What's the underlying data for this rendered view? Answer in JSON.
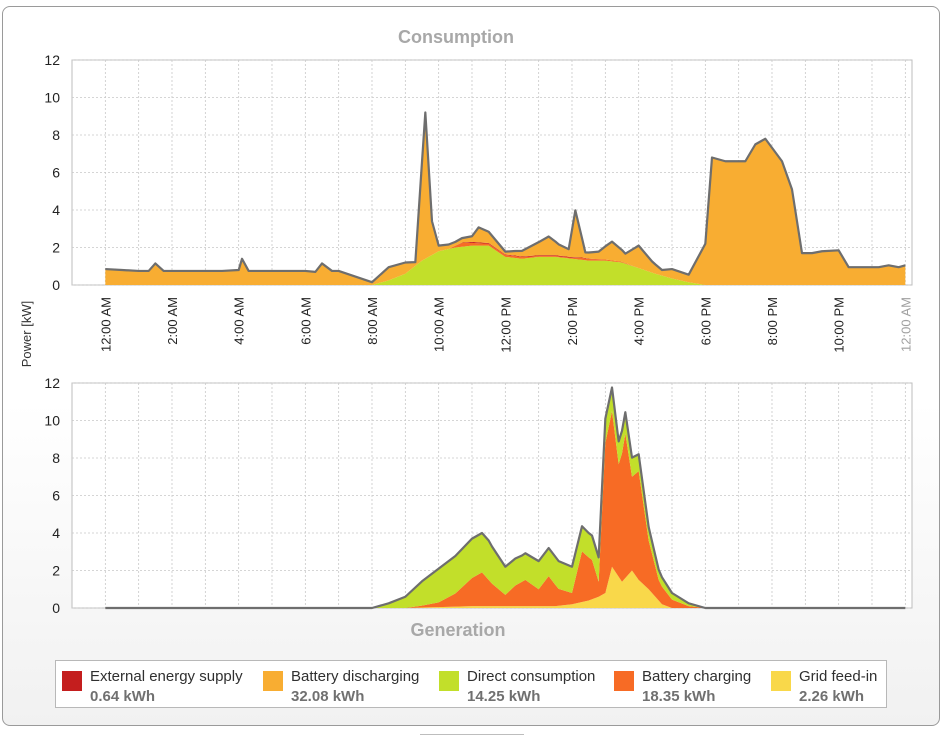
{
  "colors": {
    "external_energy_supply": "#c41e1e",
    "battery_discharging": "#f8ad32",
    "direct_consumption": "#c2df2a",
    "battery_charging": "#f76b25",
    "grid_feed_in": "#f9d84a",
    "outline": "#6e6e6e",
    "grid": "#c8c8c8"
  },
  "chart_data": [
    {
      "type": "area",
      "title": "Consumption",
      "ylabel": "Power [kW]",
      "xlabel": "",
      "ylim": [
        0,
        12
      ],
      "yticks": [
        "0",
        "2",
        "4",
        "6",
        "8",
        "10",
        "12"
      ],
      "xticks": [
        "12:00 AM",
        "2:00 AM",
        "4:00 AM",
        "6:00 AM",
        "8:00 AM",
        "10:00 AM",
        "12:00 PM",
        "2:00 PM",
        "4:00 PM",
        "6:00 PM",
        "8:00 PM",
        "10:00 PM",
        "12:00 AM"
      ],
      "grid": true,
      "stacked": true,
      "series": [
        {
          "name": "Direct consumption",
          "color_key": "direct_consumption",
          "points": [
            [
              0,
              0
            ],
            [
              8,
              0
            ],
            [
              8.5,
              0.25
            ],
            [
              9,
              0.6
            ],
            [
              9.5,
              1.3
            ],
            [
              10,
              1.8
            ],
            [
              10.5,
              2.0
            ],
            [
              11,
              2.1
            ],
            [
              11.5,
              2.1
            ],
            [
              12,
              1.5
            ],
            [
              12.5,
              1.4
            ],
            [
              13,
              1.5
            ],
            [
              13.5,
              1.5
            ],
            [
              14,
              1.4
            ],
            [
              14.5,
              1.3
            ],
            [
              15,
              1.3
            ],
            [
              15.5,
              1.2
            ],
            [
              16,
              0.9
            ],
            [
              16.5,
              0.6
            ],
            [
              17,
              0.35
            ],
            [
              17.5,
              0.15
            ],
            [
              18,
              0
            ],
            [
              24,
              0
            ]
          ]
        },
        {
          "name": "Battery charging",
          "color_key": "battery_charging",
          "points": [
            [
              0,
              0
            ],
            [
              10.3,
              0
            ],
            [
              10.7,
              0.2
            ],
            [
              11,
              0.15
            ],
            [
              11.5,
              0.1
            ],
            [
              12.3,
              0.1
            ],
            [
              13,
              0.05
            ],
            [
              14,
              0.05
            ],
            [
              14.3,
              0.1
            ],
            [
              14.6,
              0.08
            ],
            [
              15.5,
              0.04
            ],
            [
              16,
              0
            ],
            [
              24,
              0
            ]
          ]
        },
        {
          "name": "External energy supply",
          "color_key": "external_energy_supply",
          "points": [
            [
              0,
              0
            ],
            [
              10.5,
              0
            ],
            [
              11,
              0.05
            ],
            [
              12,
              0.03
            ],
            [
              14,
              0.04
            ],
            [
              15,
              0
            ],
            [
              24,
              0
            ]
          ]
        },
        {
          "name": "Battery discharging",
          "color_key": "battery_discharging",
          "points": [
            [
              0,
              0.85
            ],
            [
              0.5,
              0.8
            ],
            [
              1,
              0.75
            ],
            [
              1.3,
              0.75
            ],
            [
              1.5,
              1.15
            ],
            [
              1.75,
              0.75
            ],
            [
              2,
              0.75
            ],
            [
              3,
              0.75
            ],
            [
              3.5,
              0.75
            ],
            [
              4,
              0.8
            ],
            [
              4.1,
              1.4
            ],
            [
              4.3,
              0.75
            ],
            [
              5,
              0.75
            ],
            [
              6,
              0.75
            ],
            [
              6.3,
              0.7
            ],
            [
              6.5,
              1.15
            ],
            [
              6.8,
              0.75
            ],
            [
              7,
              0.75
            ],
            [
              8,
              0.15
            ],
            [
              8.5,
              0.7
            ],
            [
              9,
              0.6
            ],
            [
              9.3,
              0.2
            ],
            [
              9.6,
              7.8
            ],
            [
              9.8,
              1.8
            ],
            [
              10,
              0.3
            ],
            [
              10.5,
              0.2
            ],
            [
              11,
              0.3
            ],
            [
              11.2,
              0.8
            ],
            [
              11.5,
              0.6
            ],
            [
              12,
              0.15
            ],
            [
              12.5,
              0.3
            ],
            [
              13,
              0.7
            ],
            [
              13.3,
              1.0
            ],
            [
              13.6,
              0.6
            ],
            [
              13.9,
              0.4
            ],
            [
              14.1,
              2.5
            ],
            [
              14.4,
              0.3
            ],
            [
              14.8,
              0.4
            ],
            [
              15.2,
              1.0
            ],
            [
              15.6,
              0.5
            ],
            [
              16,
              1.2
            ],
            [
              16.4,
              0.6
            ],
            [
              16.7,
              0.3
            ],
            [
              17,
              0.5
            ],
            [
              17.5,
              0.4
            ],
            [
              18,
              2.2
            ],
            [
              18.2,
              6.8
            ],
            [
              18.6,
              6.6
            ],
            [
              19.2,
              6.6
            ],
            [
              19.5,
              7.5
            ],
            [
              19.8,
              7.8
            ],
            [
              20.3,
              6.6
            ],
            [
              20.6,
              5.1
            ],
            [
              20.9,
              1.7
            ],
            [
              21.2,
              1.7
            ],
            [
              21.5,
              1.8
            ],
            [
              22,
              1.85
            ],
            [
              22.3,
              0.95
            ],
            [
              22.7,
              0.95
            ],
            [
              23.2,
              0.95
            ],
            [
              23.5,
              1.05
            ],
            [
              23.8,
              0.95
            ],
            [
              24,
              1.05
            ]
          ]
        }
      ]
    },
    {
      "type": "area",
      "title": "Generation",
      "ylabel": "Power [kW]",
      "xlabel": "",
      "ylim": [
        0,
        12
      ],
      "yticks": [
        "0",
        "2",
        "4",
        "6",
        "8",
        "10",
        "12"
      ],
      "grid": true,
      "stacked": true,
      "series": [
        {
          "name": "Grid feed-in",
          "color_key": "grid_feed_in",
          "points": [
            [
              0,
              0
            ],
            [
              9,
              0
            ],
            [
              10,
              0.05
            ],
            [
              11,
              0.1
            ],
            [
              12,
              0.1
            ],
            [
              13.5,
              0.1
            ],
            [
              14,
              0.2
            ],
            [
              14.5,
              0.4
            ],
            [
              14.8,
              0.6
            ],
            [
              15,
              0.8
            ],
            [
              15.2,
              2.2
            ],
            [
              15.5,
              1.4
            ],
            [
              15.8,
              2.0
            ],
            [
              16,
              1.5
            ],
            [
              16.3,
              1.0
            ],
            [
              16.7,
              0.2
            ],
            [
              17,
              0
            ],
            [
              24,
              0
            ]
          ]
        },
        {
          "name": "Battery charging",
          "color_key": "battery_charging",
          "points": [
            [
              0,
              0
            ],
            [
              9,
              0
            ],
            [
              9.5,
              0.1
            ],
            [
              10,
              0.25
            ],
            [
              10.5,
              0.7
            ],
            [
              11,
              1.5
            ],
            [
              11.3,
              1.8
            ],
            [
              11.6,
              1.2
            ],
            [
              12,
              0.6
            ],
            [
              12.3,
              1.1
            ],
            [
              12.6,
              1.4
            ],
            [
              13,
              0.9
            ],
            [
              13.3,
              1.6
            ],
            [
              13.6,
              0.9
            ],
            [
              14,
              0.6
            ],
            [
              14.3,
              2.7
            ],
            [
              14.6,
              2.1
            ],
            [
              14.8,
              0.8
            ],
            [
              15,
              8.0
            ],
            [
              15.2,
              8.3
            ],
            [
              15.4,
              6.0
            ],
            [
              15.6,
              7.7
            ],
            [
              15.8,
              5.0
            ],
            [
              16,
              5.8
            ],
            [
              16.3,
              2.6
            ],
            [
              16.6,
              1.1
            ],
            [
              17,
              0.45
            ],
            [
              17.5,
              0.1
            ],
            [
              18,
              0
            ],
            [
              24,
              0
            ]
          ]
        },
        {
          "name": "Direct consumption",
          "color_key": "direct_consumption",
          "points": [
            [
              0,
              0
            ],
            [
              8,
              0
            ],
            [
              8.5,
              0.25
            ],
            [
              9,
              0.6
            ],
            [
              9.5,
              1.3
            ],
            [
              10,
              1.8
            ],
            [
              10.5,
              2.0
            ],
            [
              11,
              2.1
            ],
            [
              11.5,
              2.1
            ],
            [
              12,
              1.5
            ],
            [
              12.5,
              1.4
            ],
            [
              13,
              1.5
            ],
            [
              13.5,
              1.5
            ],
            [
              14,
              1.4
            ],
            [
              14.5,
              1.3
            ],
            [
              15,
              1.3
            ],
            [
              15.5,
              1.2
            ],
            [
              16,
              0.9
            ],
            [
              16.5,
              0.6
            ],
            [
              17,
              0.35
            ],
            [
              17.5,
              0.15
            ],
            [
              18,
              0
            ],
            [
              24,
              0
            ]
          ]
        }
      ]
    }
  ],
  "legend": [
    {
      "label": "External energy supply",
      "value": "0.64 kWh",
      "color_key": "external_energy_supply"
    },
    {
      "label": "Battery discharging",
      "value": "32.08 kWh",
      "color_key": "battery_discharging"
    },
    {
      "label": "Direct consumption",
      "value": "14.25 kWh",
      "color_key": "direct_consumption"
    },
    {
      "label": "Battery charging",
      "value": "18.35 kWh",
      "color_key": "battery_charging"
    },
    {
      "label": "Grid feed-in",
      "value": "2.26 kWh",
      "color_key": "grid_feed_in"
    }
  ]
}
